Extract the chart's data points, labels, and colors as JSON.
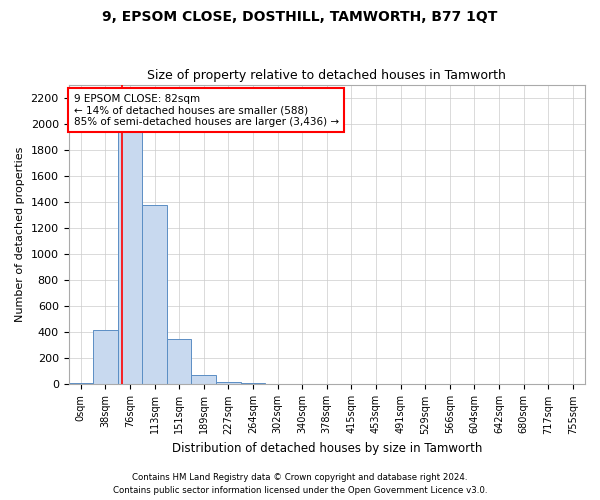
{
  "title": "9, EPSOM CLOSE, DOSTHILL, TAMWORTH, B77 1QT",
  "subtitle": "Size of property relative to detached houses in Tamworth",
  "xlabel": "Distribution of detached houses by size in Tamworth",
  "ylabel": "Number of detached properties",
  "bin_labels": [
    "0sqm",
    "38sqm",
    "76sqm",
    "113sqm",
    "151sqm",
    "189sqm",
    "227sqm",
    "264sqm",
    "302sqm",
    "340sqm",
    "378sqm",
    "415sqm",
    "453sqm",
    "491sqm",
    "529sqm",
    "566sqm",
    "604sqm",
    "642sqm",
    "680sqm",
    "717sqm",
    "755sqm"
  ],
  "bin_values": [
    10,
    420,
    2050,
    1380,
    345,
    75,
    20,
    10,
    5,
    2,
    1,
    0,
    0,
    0,
    0,
    0,
    0,
    0,
    0,
    0,
    0
  ],
  "bar_color": "#c8d9ef",
  "bar_edge_color": "#5b8ec4",
  "property_sqm": 82,
  "annotation_text": "9 EPSOM CLOSE: 82sqm\n← 14% of detached houses are smaller (588)\n85% of semi-detached houses are larger (3,436) →",
  "annotation_box_color": "white",
  "annotation_box_edge_color": "red",
  "ylim": [
    0,
    2300
  ],
  "yticks": [
    0,
    200,
    400,
    600,
    800,
    1000,
    1200,
    1400,
    1600,
    1800,
    2000,
    2200
  ],
  "grid_color": "#cccccc",
  "footer1": "Contains HM Land Registry data © Crown copyright and database right 2024.",
  "footer2": "Contains public sector information licensed under the Open Government Licence v3.0.",
  "background_color": "#ffffff",
  "plot_bg_color": "#ffffff"
}
